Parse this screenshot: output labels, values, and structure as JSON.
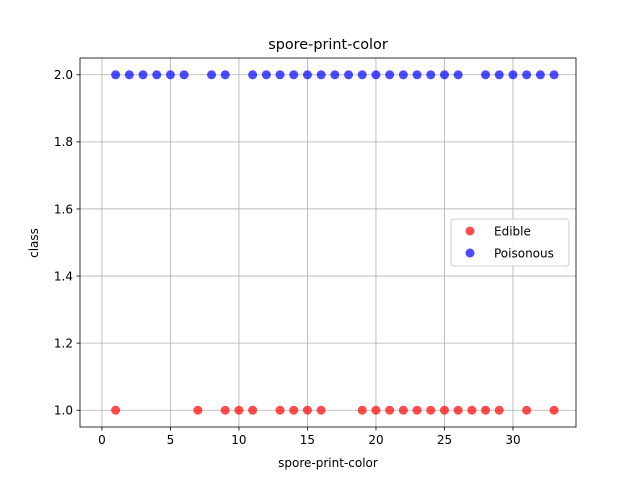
{
  "chart_data": {
    "type": "scatter",
    "title": "spore-print-color",
    "xlabel": "spore-print-color",
    "ylabel": "class",
    "xlim": [
      -1.6,
      34.6
    ],
    "ylim": [
      0.95,
      2.05
    ],
    "xticks": [
      0,
      5,
      10,
      15,
      20,
      25,
      30
    ],
    "yticks": [
      1.0,
      1.2,
      1.4,
      1.6,
      1.8,
      2.0
    ],
    "xtick_labels": [
      "0",
      "5",
      "10",
      "15",
      "20",
      "25",
      "30"
    ],
    "ytick_labels": [
      "1.0",
      "1.2",
      "1.4",
      "1.6",
      "1.8",
      "2.0"
    ],
    "grid": true,
    "legend_position": "center-right",
    "series": [
      {
        "name": "Edible",
        "color": "#ff0000",
        "alpha": 0.7,
        "points": [
          [
            1,
            1
          ],
          [
            7,
            1
          ],
          [
            9,
            1
          ],
          [
            10,
            1
          ],
          [
            11,
            1
          ],
          [
            13,
            1
          ],
          [
            14,
            1
          ],
          [
            15,
            1
          ],
          [
            16,
            1
          ],
          [
            19,
            1
          ],
          [
            20,
            1
          ],
          [
            21,
            1
          ],
          [
            22,
            1
          ],
          [
            23,
            1
          ],
          [
            24,
            1
          ],
          [
            25,
            1
          ],
          [
            26,
            1
          ],
          [
            27,
            1
          ],
          [
            28,
            1
          ],
          [
            29,
            1
          ],
          [
            31,
            1
          ],
          [
            33,
            1
          ]
        ]
      },
      {
        "name": "Poisonous",
        "color": "#0000ff",
        "alpha": 0.7,
        "points": [
          [
            1,
            2
          ],
          [
            2,
            2
          ],
          [
            3,
            2
          ],
          [
            4,
            2
          ],
          [
            5,
            2
          ],
          [
            6,
            2
          ],
          [
            8,
            2
          ],
          [
            9,
            2
          ],
          [
            11,
            2
          ],
          [
            12,
            2
          ],
          [
            13,
            2
          ],
          [
            14,
            2
          ],
          [
            15,
            2
          ],
          [
            16,
            2
          ],
          [
            17,
            2
          ],
          [
            18,
            2
          ],
          [
            19,
            2
          ],
          [
            20,
            2
          ],
          [
            21,
            2
          ],
          [
            22,
            2
          ],
          [
            23,
            2
          ],
          [
            24,
            2
          ],
          [
            25,
            2
          ],
          [
            26,
            2
          ],
          [
            28,
            2
          ],
          [
            29,
            2
          ],
          [
            30,
            2
          ],
          [
            31,
            2
          ],
          [
            32,
            2
          ],
          [
            33,
            2
          ]
        ]
      }
    ]
  }
}
